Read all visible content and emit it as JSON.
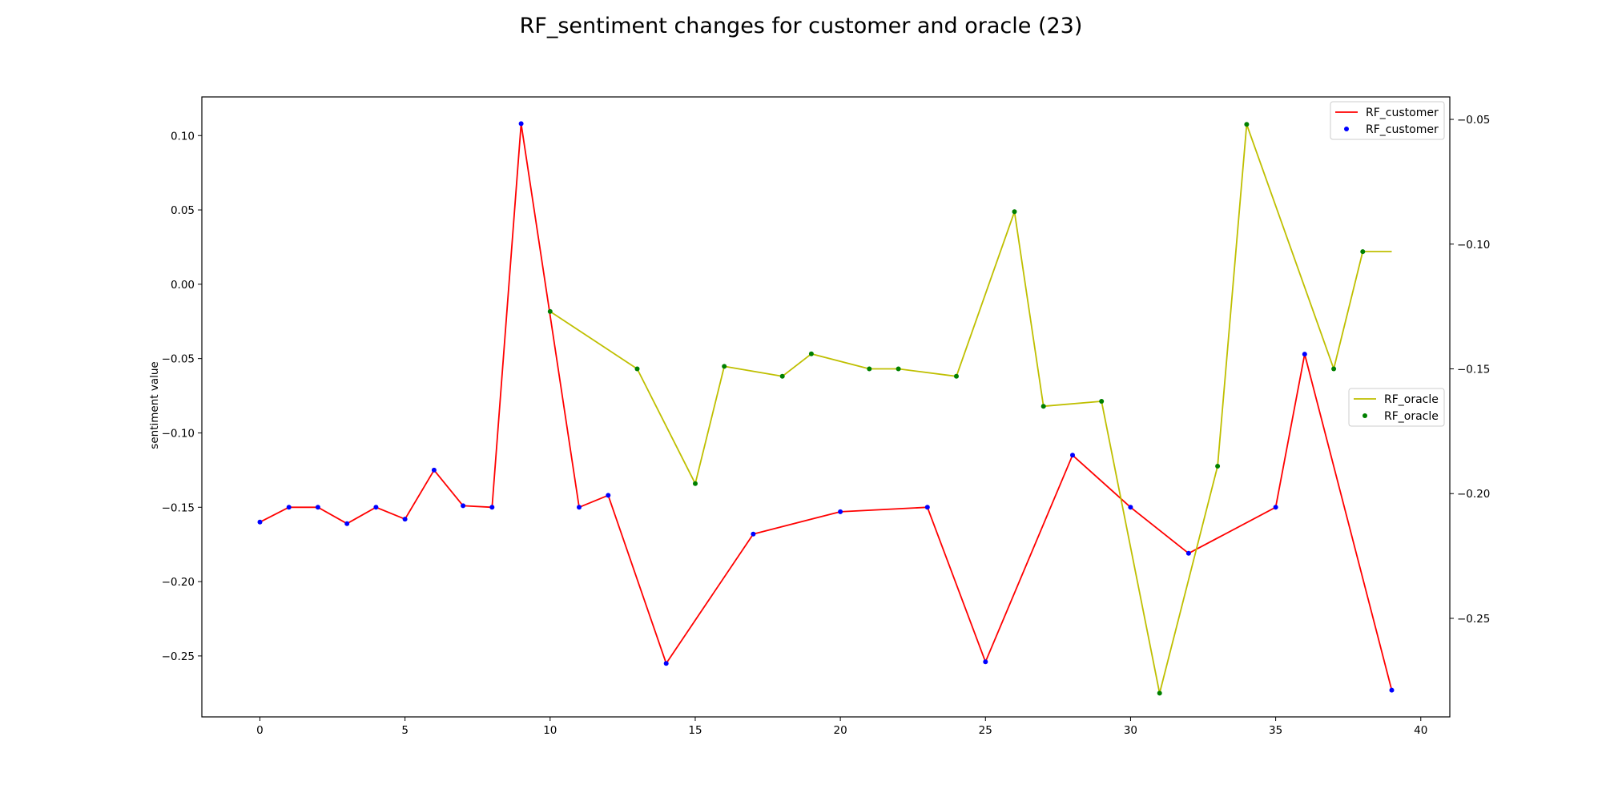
{
  "chart_data": {
    "type": "line",
    "title": "RF_sentiment changes for customer and oracle (23)",
    "xlabel": "",
    "ylabel": "sentiment value",
    "y2label": "",
    "xlim": [
      -2,
      41
    ],
    "ylim": [
      -0.291,
      0.126
    ],
    "y2lim": [
      -0.2895,
      -0.041
    ],
    "xticks": [
      0,
      5,
      10,
      15,
      20,
      25,
      30,
      35,
      40
    ],
    "yticks": [
      0.1,
      0.05,
      0.0,
      -0.05,
      -0.1,
      -0.15,
      -0.2,
      -0.25
    ],
    "ytick_labels": [
      "0.10",
      "0.05",
      "0.00",
      "−0.05",
      "−0.10",
      "−0.15",
      "−0.20",
      "−0.25"
    ],
    "y2ticks": [
      -0.05,
      -0.1,
      -0.15,
      -0.2,
      -0.25
    ],
    "y2tick_labels": [
      "−0.05",
      "−0.10",
      "−0.15",
      "−0.20",
      "−0.25"
    ],
    "grid": false,
    "series": [
      {
        "name": "RF_customer",
        "axis": "left",
        "line_color": "#ff0000",
        "marker_color": "#0000ff",
        "x": [
          0,
          1,
          2,
          3,
          4,
          5,
          6,
          7,
          8,
          9,
          11,
          12,
          14,
          17,
          20,
          23,
          25,
          28,
          30,
          32,
          35,
          36,
          39
        ],
        "y": [
          -0.16,
          -0.15,
          -0.15,
          -0.161,
          -0.15,
          -0.158,
          -0.125,
          -0.149,
          -0.15,
          0.108,
          -0.15,
          -0.142,
          -0.255,
          -0.168,
          -0.153,
          -0.15,
          -0.254,
          -0.115,
          -0.15,
          -0.181,
          -0.15,
          -0.047,
          -0.273
        ]
      },
      {
        "name": "RF_oracle",
        "axis": "right",
        "line_color": "#bfbf00",
        "marker_color": "#008000",
        "x": [
          10,
          13,
          15,
          16,
          18,
          19,
          21,
          22,
          24,
          26,
          27,
          29,
          31,
          33,
          34,
          37,
          38,
          39
        ],
        "y": [
          -0.127,
          -0.15,
          -0.196,
          -0.149,
          -0.153,
          -0.144,
          -0.15,
          -0.15,
          -0.153,
          -0.087,
          -0.165,
          -0.163,
          -0.28,
          -0.189,
          -0.052,
          -0.15,
          -0.103,
          -0.103
        ],
        "markers_shown": 17
      }
    ],
    "legends": [
      {
        "placement": "upper right",
        "entries": [
          "RF_customer",
          "RF_customer"
        ]
      },
      {
        "placement": "center right",
        "entries": [
          "RF_oracle",
          "RF_oracle"
        ]
      }
    ]
  }
}
